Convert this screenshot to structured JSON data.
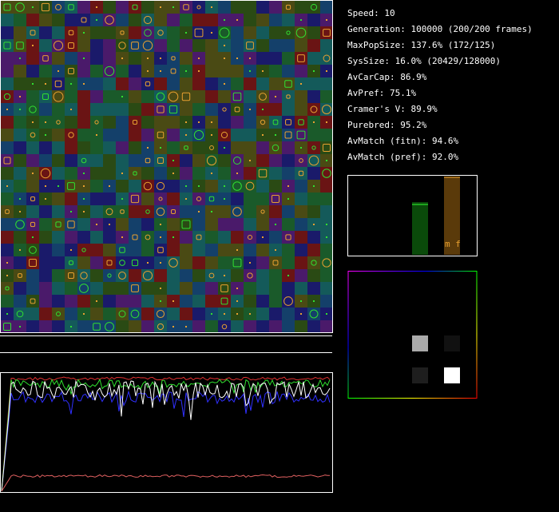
{
  "stats": [
    "Speed: 10",
    "Generation: 100000 (200/200 frames)",
    "MaxPopSize: 137.6% (172/125)",
    "SysSize: 16.0% (20429/128000)",
    "AvCarCap: 86.9%",
    "AvPref: 75.1%",
    "Cramer's V: 89.9%",
    "Purebred: 95.2%",
    "AvMatch (fitn): 94.6%",
    "AvMatch (pref): 92.0%"
  ],
  "bar_labels": "m f"
}
